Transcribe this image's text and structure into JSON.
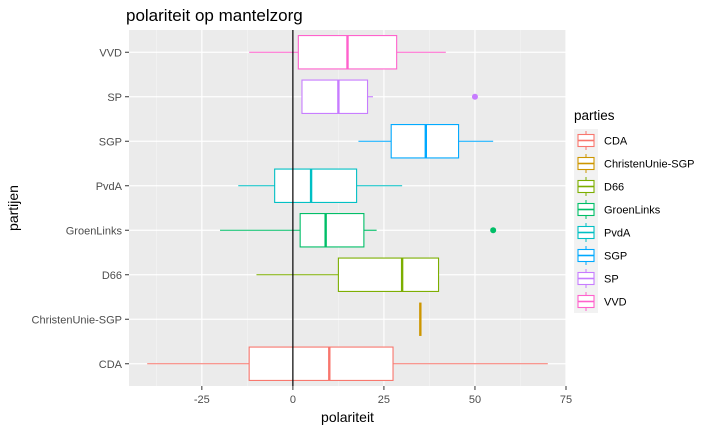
{
  "chart_data": {
    "type": "boxplot",
    "orientation": "horizontal",
    "title": "polariteit op mantelzorg",
    "xlabel": "polariteit",
    "ylabel": "partijen",
    "xlim": [
      -45,
      75
    ],
    "x_ticks": [
      -25,
      0,
      25,
      50,
      75
    ],
    "x_tick_labels": [
      "-25",
      "0",
      "25",
      "50",
      "75"
    ],
    "reference_line_x": 0,
    "grid": true,
    "legend": {
      "title": "parties",
      "placement": "right"
    },
    "categories": [
      "VVD",
      "SP",
      "SGP",
      "PvdA",
      "GroenLinks",
      "D66",
      "ChristenUnie-SGP",
      "CDA"
    ],
    "series": [
      {
        "name": "CDA",
        "color": "#F8766D",
        "min": -40,
        "q1": -12,
        "median": 10,
        "q3": 27.5,
        "max": 70,
        "outliers": []
      },
      {
        "name": "ChristenUnie-SGP",
        "color": "#CD9600",
        "min": 35,
        "q1": 35,
        "median": 35,
        "q3": 35,
        "max": 35,
        "outliers": []
      },
      {
        "name": "D66",
        "color": "#7CAE00",
        "min": -10,
        "q1": 12.5,
        "median": 30,
        "q3": 40,
        "max": 40,
        "outliers": []
      },
      {
        "name": "GroenLinks",
        "color": "#00BE67",
        "min": -20,
        "q1": 2,
        "median": 9,
        "q3": 19.5,
        "max": 23,
        "outliers": [
          55
        ]
      },
      {
        "name": "PvdA",
        "color": "#00BFC4",
        "min": -15,
        "q1": -5,
        "median": 5,
        "q3": 17.5,
        "max": 30,
        "outliers": []
      },
      {
        "name": "SGP",
        "color": "#00A9FF",
        "min": 18,
        "q1": 27,
        "median": 36.5,
        "q3": 45.5,
        "max": 55,
        "outliers": []
      },
      {
        "name": "SP",
        "color": "#C77CFF",
        "min": 2.5,
        "q1": 2.5,
        "median": 12.5,
        "q3": 20.5,
        "max": 22,
        "outliers": [
          50
        ]
      },
      {
        "name": "VVD",
        "color": "#FF61CC",
        "min": -12,
        "q1": 1.5,
        "median": 15,
        "q3": 28.5,
        "max": 42,
        "outliers": []
      }
    ]
  }
}
